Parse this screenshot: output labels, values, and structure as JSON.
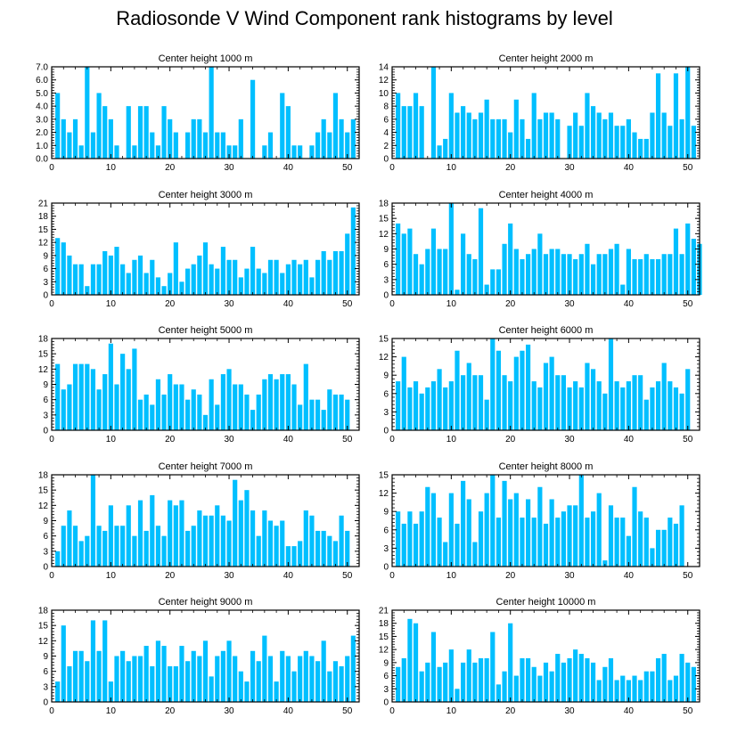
{
  "title": "Radiosonde V Wind Component rank histograms by level",
  "colors": {
    "bar": "#00BFFF",
    "axis": "#000000",
    "background": "#FFFFFF"
  },
  "chart_data": [
    {
      "type": "bar",
      "title": "Center height 1000 m",
      "xlim": [
        0,
        52
      ],
      "ylim": [
        0,
        7
      ],
      "yticks": [
        "0.0",
        "1.0",
        "2.0",
        "3.0",
        "4.0",
        "5.0",
        "6.0",
        "7.0"
      ],
      "xticks": [
        "0",
        "10",
        "20",
        "30",
        "40",
        "50"
      ],
      "values": [
        0,
        5,
        3,
        2,
        3,
        1,
        7,
        2,
        5,
        4,
        3,
        1,
        0,
        4,
        1,
        4,
        4,
        2,
        1,
        4,
        3,
        2,
        0,
        2,
        3,
        3,
        2,
        7,
        2,
        2,
        1,
        1,
        3,
        0,
        6,
        0,
        1,
        2,
        0,
        5,
        4,
        1,
        1,
        0,
        1,
        2,
        3,
        2,
        5,
        3,
        2,
        3
      ]
    },
    {
      "type": "bar",
      "title": "Center height 2000 m",
      "xlim": [
        0,
        52
      ],
      "ylim": [
        0,
        14
      ],
      "yticks": [
        "0",
        "2",
        "4",
        "6",
        "8",
        "10",
        "12",
        "14"
      ],
      "xticks": [
        "0",
        "10",
        "20",
        "30",
        "40",
        "50"
      ],
      "values": [
        0,
        10,
        8,
        8,
        10,
        8,
        0,
        14,
        2,
        3,
        10,
        7,
        8,
        7,
        6,
        7,
        9,
        6,
        6,
        6,
        4,
        9,
        6,
        3,
        10,
        6,
        7,
        7,
        6,
        0,
        5,
        7,
        5,
        10,
        8,
        7,
        6,
        7,
        5,
        5,
        6,
        4,
        3,
        3,
        7,
        13,
        7,
        5,
        13,
        6,
        14,
        5
      ]
    },
    {
      "type": "bar",
      "title": "Center height 3000 m",
      "xlim": [
        0,
        52
      ],
      "ylim": [
        0,
        21
      ],
      "yticks": [
        "0",
        "3",
        "6",
        "9",
        "12",
        "15",
        "18",
        "21"
      ],
      "xticks": [
        "0",
        "10",
        "20",
        "30",
        "40",
        "50"
      ],
      "values": [
        0,
        13,
        12,
        9,
        7,
        7,
        2,
        7,
        7,
        10,
        9,
        11,
        7,
        5,
        8,
        9,
        5,
        8,
        4,
        2,
        5,
        12,
        3,
        6,
        7,
        9,
        12,
        7,
        6,
        11,
        8,
        8,
        4,
        6,
        11,
        6,
        5,
        8,
        8,
        5,
        7,
        8,
        7,
        8,
        4,
        8,
        10,
        8,
        10,
        10,
        14,
        20
      ]
    },
    {
      "type": "bar",
      "title": "Center height 4000 m",
      "xlim": [
        0,
        52
      ],
      "ylim": [
        0,
        18
      ],
      "yticks": [
        "0",
        "3",
        "6",
        "9",
        "12",
        "15",
        "18"
      ],
      "xticks": [
        "0",
        "10",
        "20",
        "30",
        "40",
        "50"
      ],
      "values": [
        0,
        14,
        12,
        13,
        8,
        6,
        9,
        13,
        9,
        9,
        18,
        1,
        12,
        8,
        7,
        17,
        2,
        5,
        5,
        10,
        14,
        9,
        7,
        8,
        9,
        12,
        8,
        9,
        9,
        8,
        8,
        7,
        8,
        10,
        6,
        8,
        8,
        9,
        10,
        2,
        9,
        7,
        7,
        8,
        7,
        7,
        8,
        8,
        13,
        8,
        14,
        11,
        10
      ]
    },
    {
      "type": "bar",
      "title": "Center height 5000 m",
      "xlim": [
        0,
        52
      ],
      "ylim": [
        0,
        18
      ],
      "yticks": [
        "0",
        "3",
        "6",
        "9",
        "12",
        "15",
        "18"
      ],
      "xticks": [
        "0",
        "10",
        "20",
        "30",
        "40",
        "50"
      ],
      "values": [
        0,
        13,
        8,
        9,
        13,
        13,
        13,
        12,
        8,
        11,
        17,
        9,
        15,
        12,
        16,
        6,
        7,
        5,
        10,
        7,
        11,
        9,
        9,
        6,
        8,
        7,
        3,
        10,
        5,
        11,
        12,
        9,
        9,
        7,
        4,
        7,
        10,
        11,
        10,
        11,
        11,
        9,
        5,
        13,
        6,
        6,
        4,
        8,
        7,
        7,
        6
      ]
    },
    {
      "type": "bar",
      "title": "Center height 6000 m",
      "xlim": [
        0,
        52
      ],
      "ylim": [
        0,
        15
      ],
      "yticks": [
        "0",
        "3",
        "6",
        "9",
        "12",
        "15"
      ],
      "xticks": [
        "0",
        "10",
        "20",
        "30",
        "40",
        "50"
      ],
      "values": [
        0,
        8,
        12,
        7,
        8,
        6,
        7,
        8,
        10,
        7,
        8,
        13,
        9,
        11,
        9,
        9,
        5,
        15,
        13,
        9,
        8,
        12,
        13,
        14,
        8,
        7,
        11,
        12,
        9,
        9,
        7,
        8,
        7,
        11,
        10,
        8,
        6,
        15,
        8,
        7,
        8,
        9,
        9,
        5,
        7,
        8,
        11,
        8,
        7,
        6,
        10
      ]
    },
    {
      "type": "bar",
      "title": "Center height 7000 m",
      "xlim": [
        0,
        52
      ],
      "ylim": [
        0,
        18
      ],
      "yticks": [
        "0",
        "3",
        "6",
        "9",
        "12",
        "15",
        "18"
      ],
      "xticks": [
        "0",
        "10",
        "20",
        "30",
        "40",
        "50"
      ],
      "values": [
        0,
        3,
        8,
        11,
        8,
        5,
        6,
        18,
        8,
        7,
        12,
        8,
        8,
        12,
        6,
        13,
        7,
        14,
        8,
        6,
        13,
        12,
        13,
        7,
        8,
        11,
        10,
        10,
        12,
        10,
        9,
        17,
        13,
        15,
        11,
        6,
        11,
        9,
        8,
        9,
        4,
        4,
        5,
        11,
        10,
        7,
        7,
        6,
        5,
        10,
        7
      ]
    },
    {
      "type": "bar",
      "title": "Center height 8000 m",
      "xlim": [
        0,
        52
      ],
      "ylim": [
        0,
        15
      ],
      "yticks": [
        "0",
        "3",
        "6",
        "9",
        "12",
        "15"
      ],
      "xticks": [
        "0",
        "10",
        "20",
        "30",
        "40",
        "50"
      ],
      "values": [
        0,
        9,
        7,
        9,
        7,
        9,
        13,
        12,
        8,
        4,
        12,
        7,
        14,
        11,
        4,
        9,
        12,
        15,
        8,
        14,
        11,
        12,
        8,
        11,
        8,
        13,
        7,
        11,
        8,
        9,
        10,
        10,
        15,
        8,
        9,
        12,
        1,
        10,
        8,
        8,
        5,
        13,
        9,
        8,
        3,
        6,
        6,
        8,
        7,
        10
      ]
    },
    {
      "type": "bar",
      "title": "Center height 9000 m",
      "xlim": [
        0,
        52
      ],
      "ylim": [
        0,
        18
      ],
      "yticks": [
        "0",
        "3",
        "6",
        "9",
        "12",
        "15",
        "18"
      ],
      "xticks": [
        "0",
        "10",
        "20",
        "30",
        "40",
        "50"
      ],
      "values": [
        0,
        4,
        15,
        7,
        10,
        10,
        8,
        16,
        10,
        16,
        4,
        9,
        10,
        8,
        9,
        9,
        11,
        7,
        12,
        11,
        7,
        7,
        11,
        8,
        10,
        9,
        12,
        5,
        9,
        10,
        12,
        9,
        6,
        4,
        10,
        8,
        13,
        9,
        4,
        10,
        9,
        6,
        9,
        10,
        9,
        8,
        12,
        6,
        8,
        7,
        9,
        13
      ]
    },
    {
      "type": "bar",
      "title": "Center height 10000 m",
      "xlim": [
        0,
        52
      ],
      "ylim": [
        0,
        21
      ],
      "yticks": [
        "0",
        "3",
        "6",
        "9",
        "12",
        "15",
        "18",
        "21"
      ],
      "xticks": [
        "0",
        "10",
        "20",
        "30",
        "40",
        "50"
      ],
      "values": [
        0,
        8,
        10,
        19,
        18,
        7,
        9,
        16,
        8,
        9,
        12,
        3,
        9,
        12,
        9,
        10,
        10,
        16,
        4,
        7,
        18,
        6,
        10,
        10,
        8,
        6,
        9,
        7,
        11,
        9,
        10,
        12,
        11,
        10,
        9,
        5,
        8,
        10,
        5,
        6,
        5,
        6,
        5,
        7,
        7,
        10,
        11,
        5,
        6,
        11,
        9,
        8
      ]
    }
  ]
}
